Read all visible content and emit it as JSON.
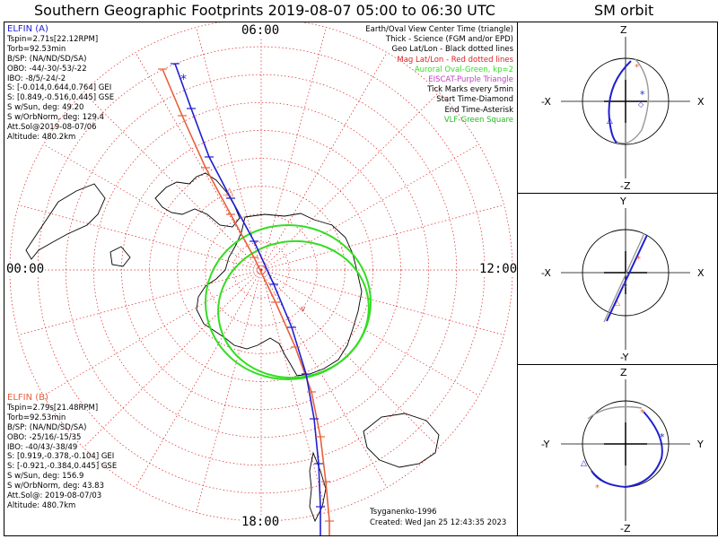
{
  "main_title": "Southern Geographic Footprints 2019-08-07 05:00 to 06:30 UTC",
  "sm_title": "SM orbit",
  "colors": {
    "elfin_a": "#1f1fd0",
    "elfin_b": "#e8603c",
    "aurora": "#33dd22",
    "grid": "#dd2222",
    "eiscat": "#c040c0",
    "vlf": "#22bb22",
    "sm_gray": "#999999"
  },
  "hours": {
    "top": "06:00",
    "left": "00:00",
    "right": "12:00",
    "bottom": "18:00"
  },
  "elfin_a": {
    "name": "ELFIN (A)",
    "lines": [
      "Tspin=2.71s[22.12RPM]",
      "Torb=92.53min",
      "B/SP: (NA/ND/SD/SA)",
      "OBO: -44/-30/-53/-22",
      "IBO: -8/5/-24/-2",
      "S: [-0.014,0.644,0.764] GEI",
      "S: [0.849,-0.516,0.445] GSE",
      "S w/Sun, deg: 49.20",
      "S w/OrbNorm, deg: 129.4",
      "Att.Sol@2019-08-07/06",
      "Altitude: 480.2km"
    ]
  },
  "elfin_b": {
    "name": "ELFIN (B)",
    "lines": [
      "Tspin=2.79s[21.48RPM]",
      "Torb=92.53min",
      "B/SP: (NA/ND/SD/SA)",
      "OBO: -25/16/-15/35",
      "IBO: -40/43/-38/49",
      "S: [0.919,-0.378,-0.104] GEI",
      "S: [-0.921,-0.384,0.445] GSE",
      "S w/Sun, deg: 156.9",
      "S w/OrbNorm, deg: 43.83",
      "Att.Sol@: 2019-08-07/03",
      "Altitude: 480.7km"
    ]
  },
  "legend": [
    "Earth/Oval View Center Time (triangle)",
    "Thick - Science (FGM and/or EPD)",
    "Geo Lat/Lon - Black dotted lines",
    "Mag Lat/Lon - Red dotted lines",
    "Auroral Oval-Green, kp=2",
    "EISCAT-Purple Triangle",
    "Tick Marks every 5min",
    "Start Time-Diamond",
    "End Time-Asterisk",
    "VLF-Green Square"
  ],
  "credits": [
    "Tsyganenko-1996",
    "Created: Wed Jan 25 12:43:35 2023"
  ],
  "sm_axes": {
    "p1": {
      "top": "Z",
      "bottom": "-Z",
      "left": "-X",
      "right": "X"
    },
    "p2": {
      "top": "Y",
      "bottom": "-Y",
      "left": "-X",
      "right": "X"
    },
    "p3": {
      "top": "Z",
      "bottom": "-Z",
      "left": "-Y",
      "right": "Y"
    }
  },
  "chart_data": {
    "type": "polar-map",
    "projection": "south polar",
    "hour_labels": [
      "06:00",
      "00:00",
      "12:00",
      "18:00"
    ],
    "lat_rings_deg": [
      -80,
      -70,
      -60,
      -50,
      -40,
      -30,
      -20,
      -10,
      0
    ],
    "series": [
      {
        "name": "ELFIN (A) footprint",
        "time_range": [
          "05:00",
          "06:30"
        ]
      },
      {
        "name": "ELFIN (B) footprint",
        "time_range": [
          "05:00",
          "06:30"
        ]
      },
      {
        "name": "Auroral Oval",
        "kp": 2
      }
    ]
  }
}
